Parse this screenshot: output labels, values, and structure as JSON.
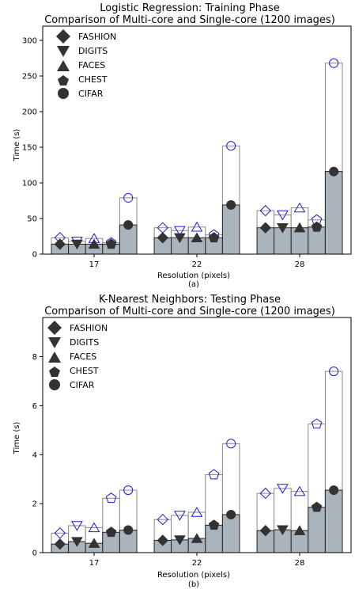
{
  "colors": {
    "bar_fill": "#aab4bc",
    "single_bar_fill": "#ffffff",
    "single_bar_edge": "#888888",
    "multi_marker": "#333333",
    "single_marker": "#1a1adb"
  },
  "legend_labels": [
    "FASHION",
    "DIGITS",
    "FACES",
    "CHEST",
    "CIFAR"
  ],
  "legend_markers": [
    "diamond",
    "triangle-down",
    "triangle-up",
    "pentagon",
    "circle"
  ],
  "chart_data": [
    {
      "type": "bar",
      "title": "Logistic Regression: Training Phase",
      "subtitle": "Comparison of Multi-core and Single-core (1200 images)",
      "xlabel": "Resolution (pixels)",
      "ylabel": "Time (s)",
      "caption": "(a)",
      "categories": [
        "17",
        "22",
        "28"
      ],
      "ylim": [
        0,
        320
      ],
      "yticks": [
        0,
        50,
        100,
        150,
        200,
        250,
        300
      ],
      "grid": false,
      "legend_position": "top-left",
      "series": [
        {
          "name": "FASHION",
          "multi_core": [
            14,
            23,
            37
          ],
          "single_core": [
            23,
            37,
            61
          ]
        },
        {
          "name": "DIGITS",
          "multi_core": [
            14,
            23,
            37
          ],
          "single_core": [
            18,
            33,
            55
          ]
        },
        {
          "name": "FACES",
          "multi_core": [
            14,
            23,
            37
          ],
          "single_core": [
            22,
            38,
            65
          ]
        },
        {
          "name": "CHEST",
          "multi_core": [
            14,
            23,
            38
          ],
          "single_core": [
            16,
            27,
            48
          ]
        },
        {
          "name": "CIFAR",
          "multi_core": [
            41,
            69,
            116
          ],
          "single_core": [
            79,
            152,
            268
          ]
        }
      ]
    },
    {
      "type": "bar",
      "title": "K-Nearest Neighbors: Testing Phase",
      "subtitle": "Comparison of Multi-core and Single-core (1200 images)",
      "xlabel": "Resolution (pixels)",
      "ylabel": "Time (s)",
      "caption": "(b)",
      "categories": [
        "17",
        "22",
        "28"
      ],
      "ylim": [
        0,
        9.6
      ],
      "yticks": [
        0,
        2,
        4,
        6,
        8
      ],
      "grid": false,
      "legend_position": "top-left",
      "series": [
        {
          "name": "FASHION",
          "multi_core": [
            0.35,
            0.5,
            0.9
          ],
          "single_core": [
            0.8,
            1.35,
            2.42
          ]
        },
        {
          "name": "DIGITS",
          "multi_core": [
            0.45,
            0.52,
            0.93
          ],
          "single_core": [
            1.1,
            1.52,
            2.62
          ]
        },
        {
          "name": "FACES",
          "multi_core": [
            0.38,
            0.58,
            0.9
          ],
          "single_core": [
            1.02,
            1.65,
            2.5
          ]
        },
        {
          "name": "CHEST",
          "multi_core": [
            0.83,
            1.12,
            1.85
          ],
          "single_core": [
            2.22,
            3.18,
            5.25
          ]
        },
        {
          "name": "CIFAR",
          "multi_core": [
            0.92,
            1.55,
            2.55
          ],
          "single_core": [
            2.55,
            4.45,
            7.4
          ]
        }
      ]
    }
  ]
}
